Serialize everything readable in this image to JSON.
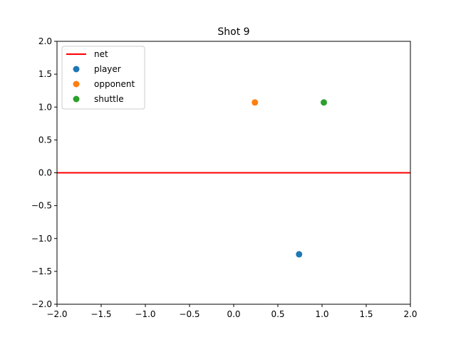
{
  "chart_data": {
    "type": "scatter",
    "title": "Shot 9",
    "xlabel": "",
    "ylabel": "",
    "xlim": [
      -2.0,
      2.0
    ],
    "ylim": [
      -2.0,
      2.0
    ],
    "x_ticks": [
      -2.0,
      -1.5,
      -1.0,
      -0.5,
      0.0,
      0.5,
      1.0,
      1.5,
      2.0
    ],
    "y_ticks": [
      -2.0,
      -1.5,
      -1.0,
      -0.5,
      0.0,
      0.5,
      1.0,
      1.5,
      2.0
    ],
    "x_tick_labels": [
      "−2.0",
      "−1.5",
      "−1.0",
      "−0.5",
      "0.0",
      "0.5",
      "1.0",
      "1.5",
      "2.0"
    ],
    "y_tick_labels": [
      "−2.0",
      "−1.5",
      "−1.0",
      "−0.5",
      "0.0",
      "0.5",
      "1.0",
      "1.5",
      "2.0"
    ],
    "grid": false,
    "legend_position": "top-left",
    "lines": [
      {
        "name": "net",
        "x": [
          -2.0,
          2.0
        ],
        "y": [
          0.0,
          0.0
        ],
        "color": "#ff0000"
      }
    ],
    "series": [
      {
        "name": "player",
        "x": [
          0.74
        ],
        "y": [
          -1.24
        ],
        "color": "#1f77b4"
      },
      {
        "name": "opponent",
        "x": [
          0.24
        ],
        "y": [
          1.07
        ],
        "color": "#ff7f0e"
      },
      {
        "name": "shuttle",
        "x": [
          1.02
        ],
        "y": [
          1.07
        ],
        "color": "#2ca02c"
      }
    ]
  }
}
